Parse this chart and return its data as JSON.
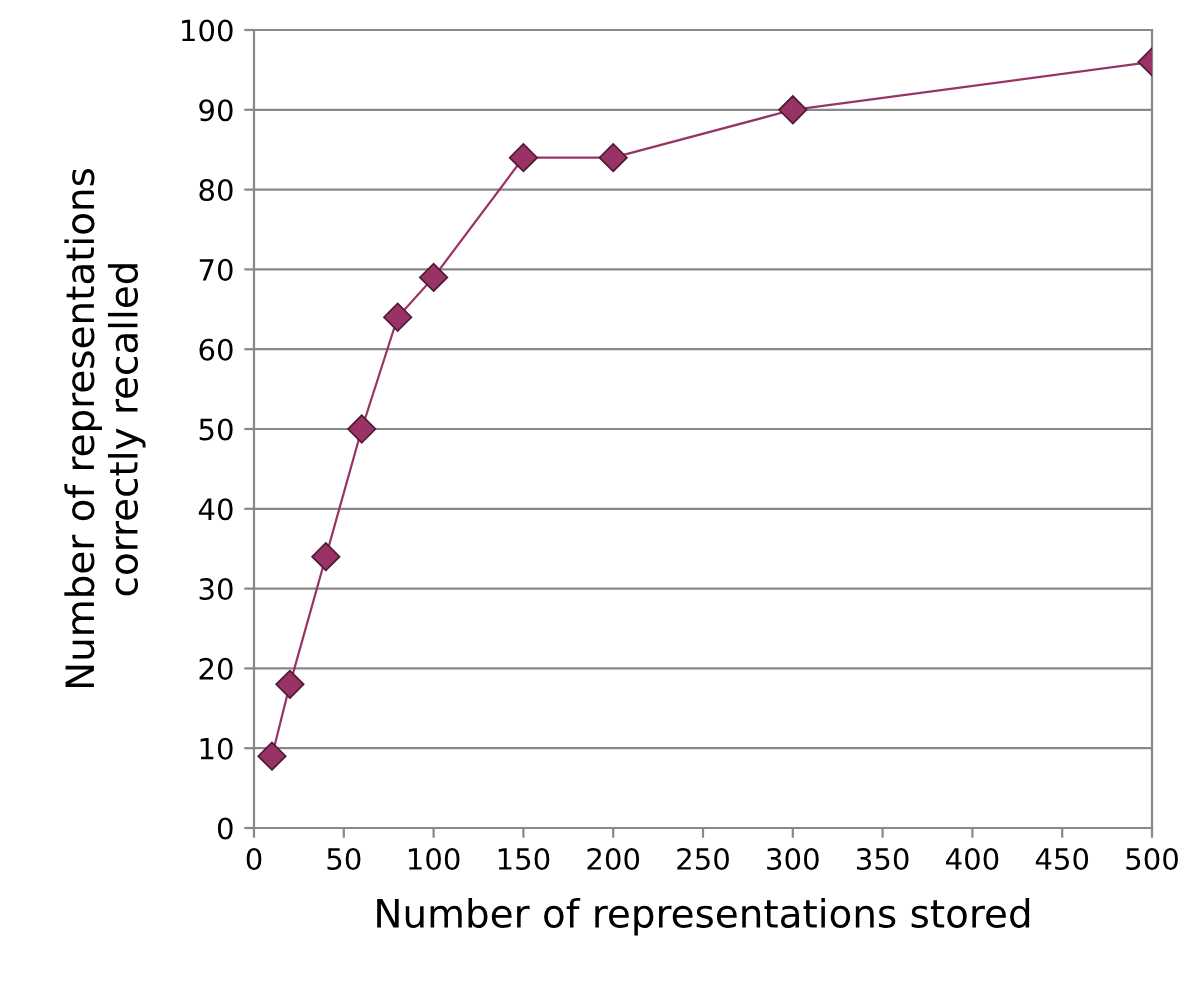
{
  "chart_data": {
    "type": "line",
    "xlabel": "Number of representations stored",
    "ylabel": "Number of representations\ncorrectly recalled",
    "x": [
      10,
      20,
      40,
      60,
      80,
      100,
      150,
      200,
      300,
      500
    ],
    "series": [
      {
        "color": "#993366",
        "values": [
          9,
          18,
          34,
          50,
          64,
          69,
          84,
          84,
          90,
          96
        ]
      }
    ],
    "xlim": [
      0,
      500
    ],
    "xticks": [
      0,
      50,
      100,
      150,
      200,
      250,
      300,
      350,
      400,
      450,
      500
    ],
    "ylim": [
      0,
      100
    ],
    "yticks": [
      0,
      10,
      20,
      30,
      40,
      50,
      60,
      70,
      80,
      90,
      100
    ],
    "grid": "y",
    "marker": "diamond",
    "line_style": "solid",
    "legend": false
  }
}
